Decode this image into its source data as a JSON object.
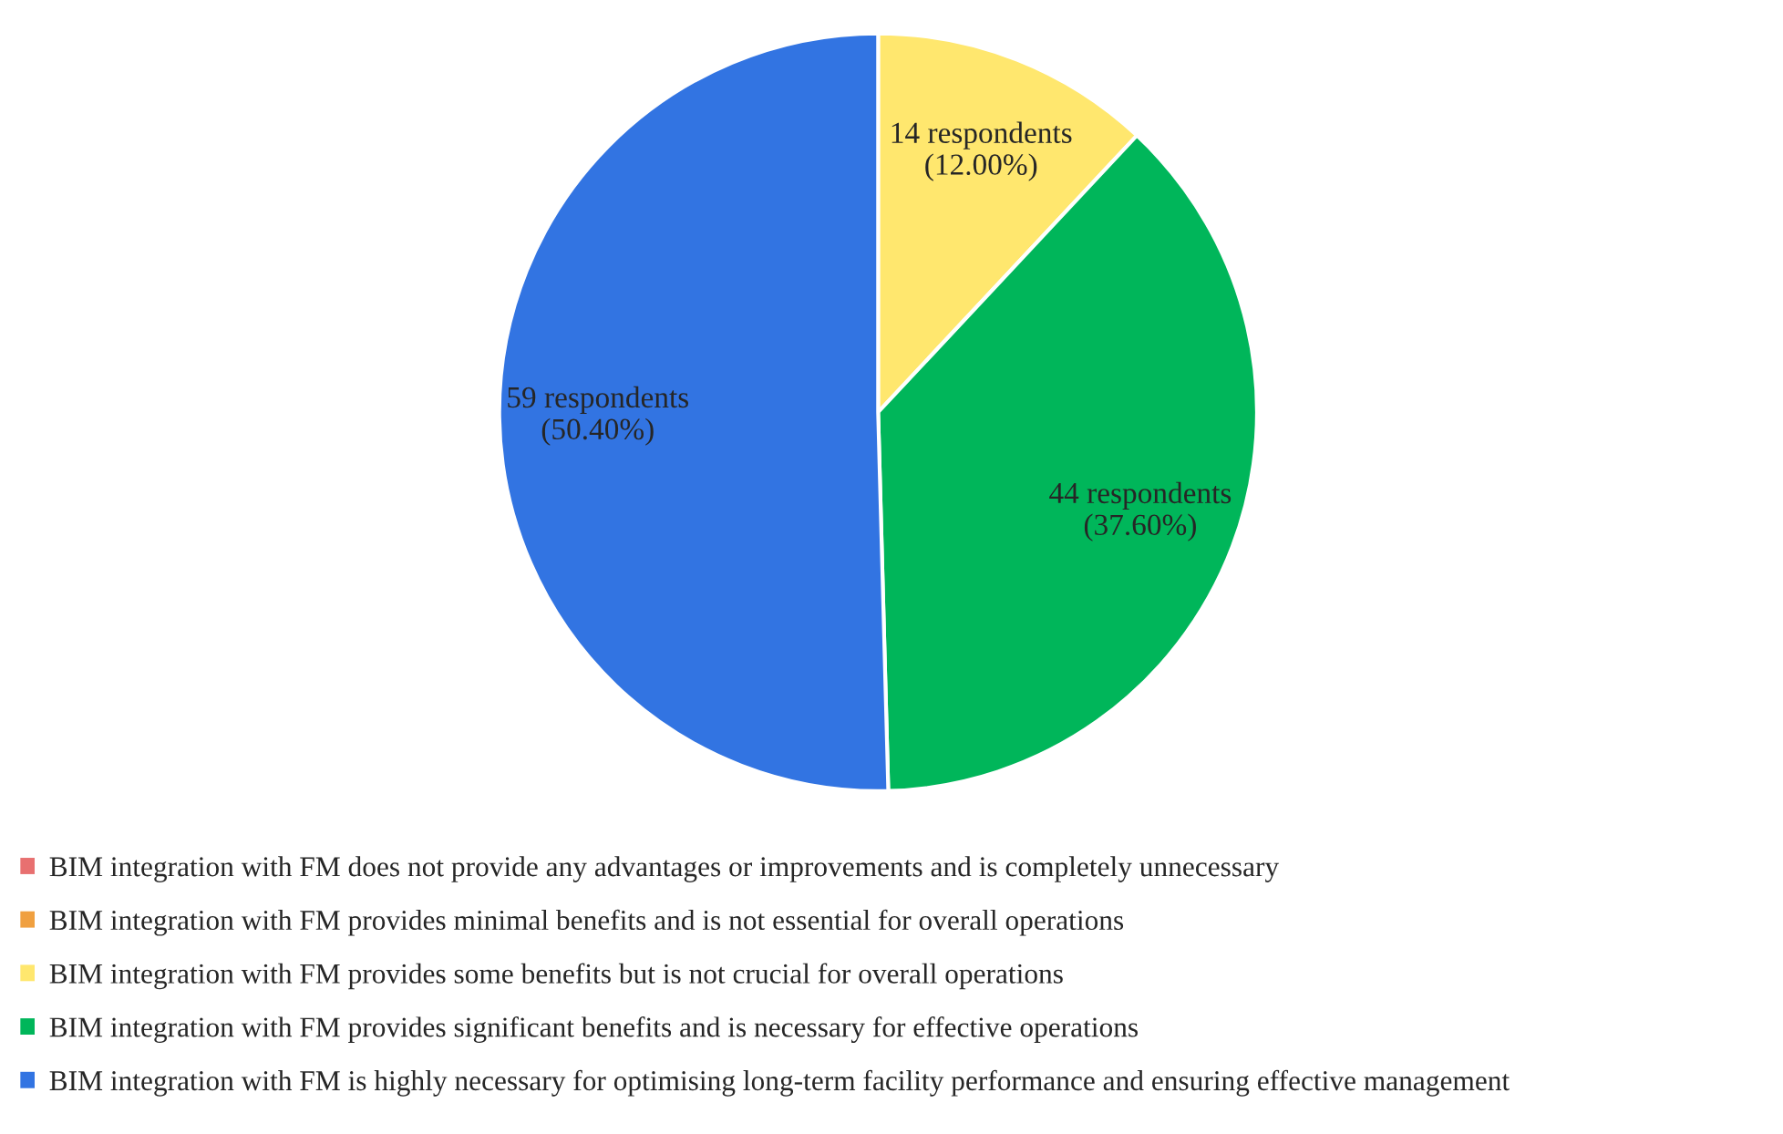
{
  "chart_data": {
    "type": "pie",
    "categories": [
      "BIM integration with FM does not provide any advantages or improvements and is completely unnecessary",
      "BIM integration with FM provides minimal benefits and is not essential for overall operations",
      "BIM integration with FM provides some benefits but is not crucial for overall operations",
      "BIM integration with FM provides significant benefits and is necessary for effective operations",
      "BIM integration with FM is highly necessary for optimising long-term facility performance and ensuring effective management"
    ],
    "values": [
      0,
      0,
      14,
      44,
      59
    ],
    "colors": [
      "#e87070",
      "#f0a040",
      "#ffe76e",
      "#00b65a",
      "#3274e2"
    ],
    "value_labels": [
      null,
      null,
      "14 respondents\n(12.00%)",
      "44 respondents\n(37.60%)",
      "59 respondents\n(50.40%)"
    ],
    "legend": "bottom"
  }
}
